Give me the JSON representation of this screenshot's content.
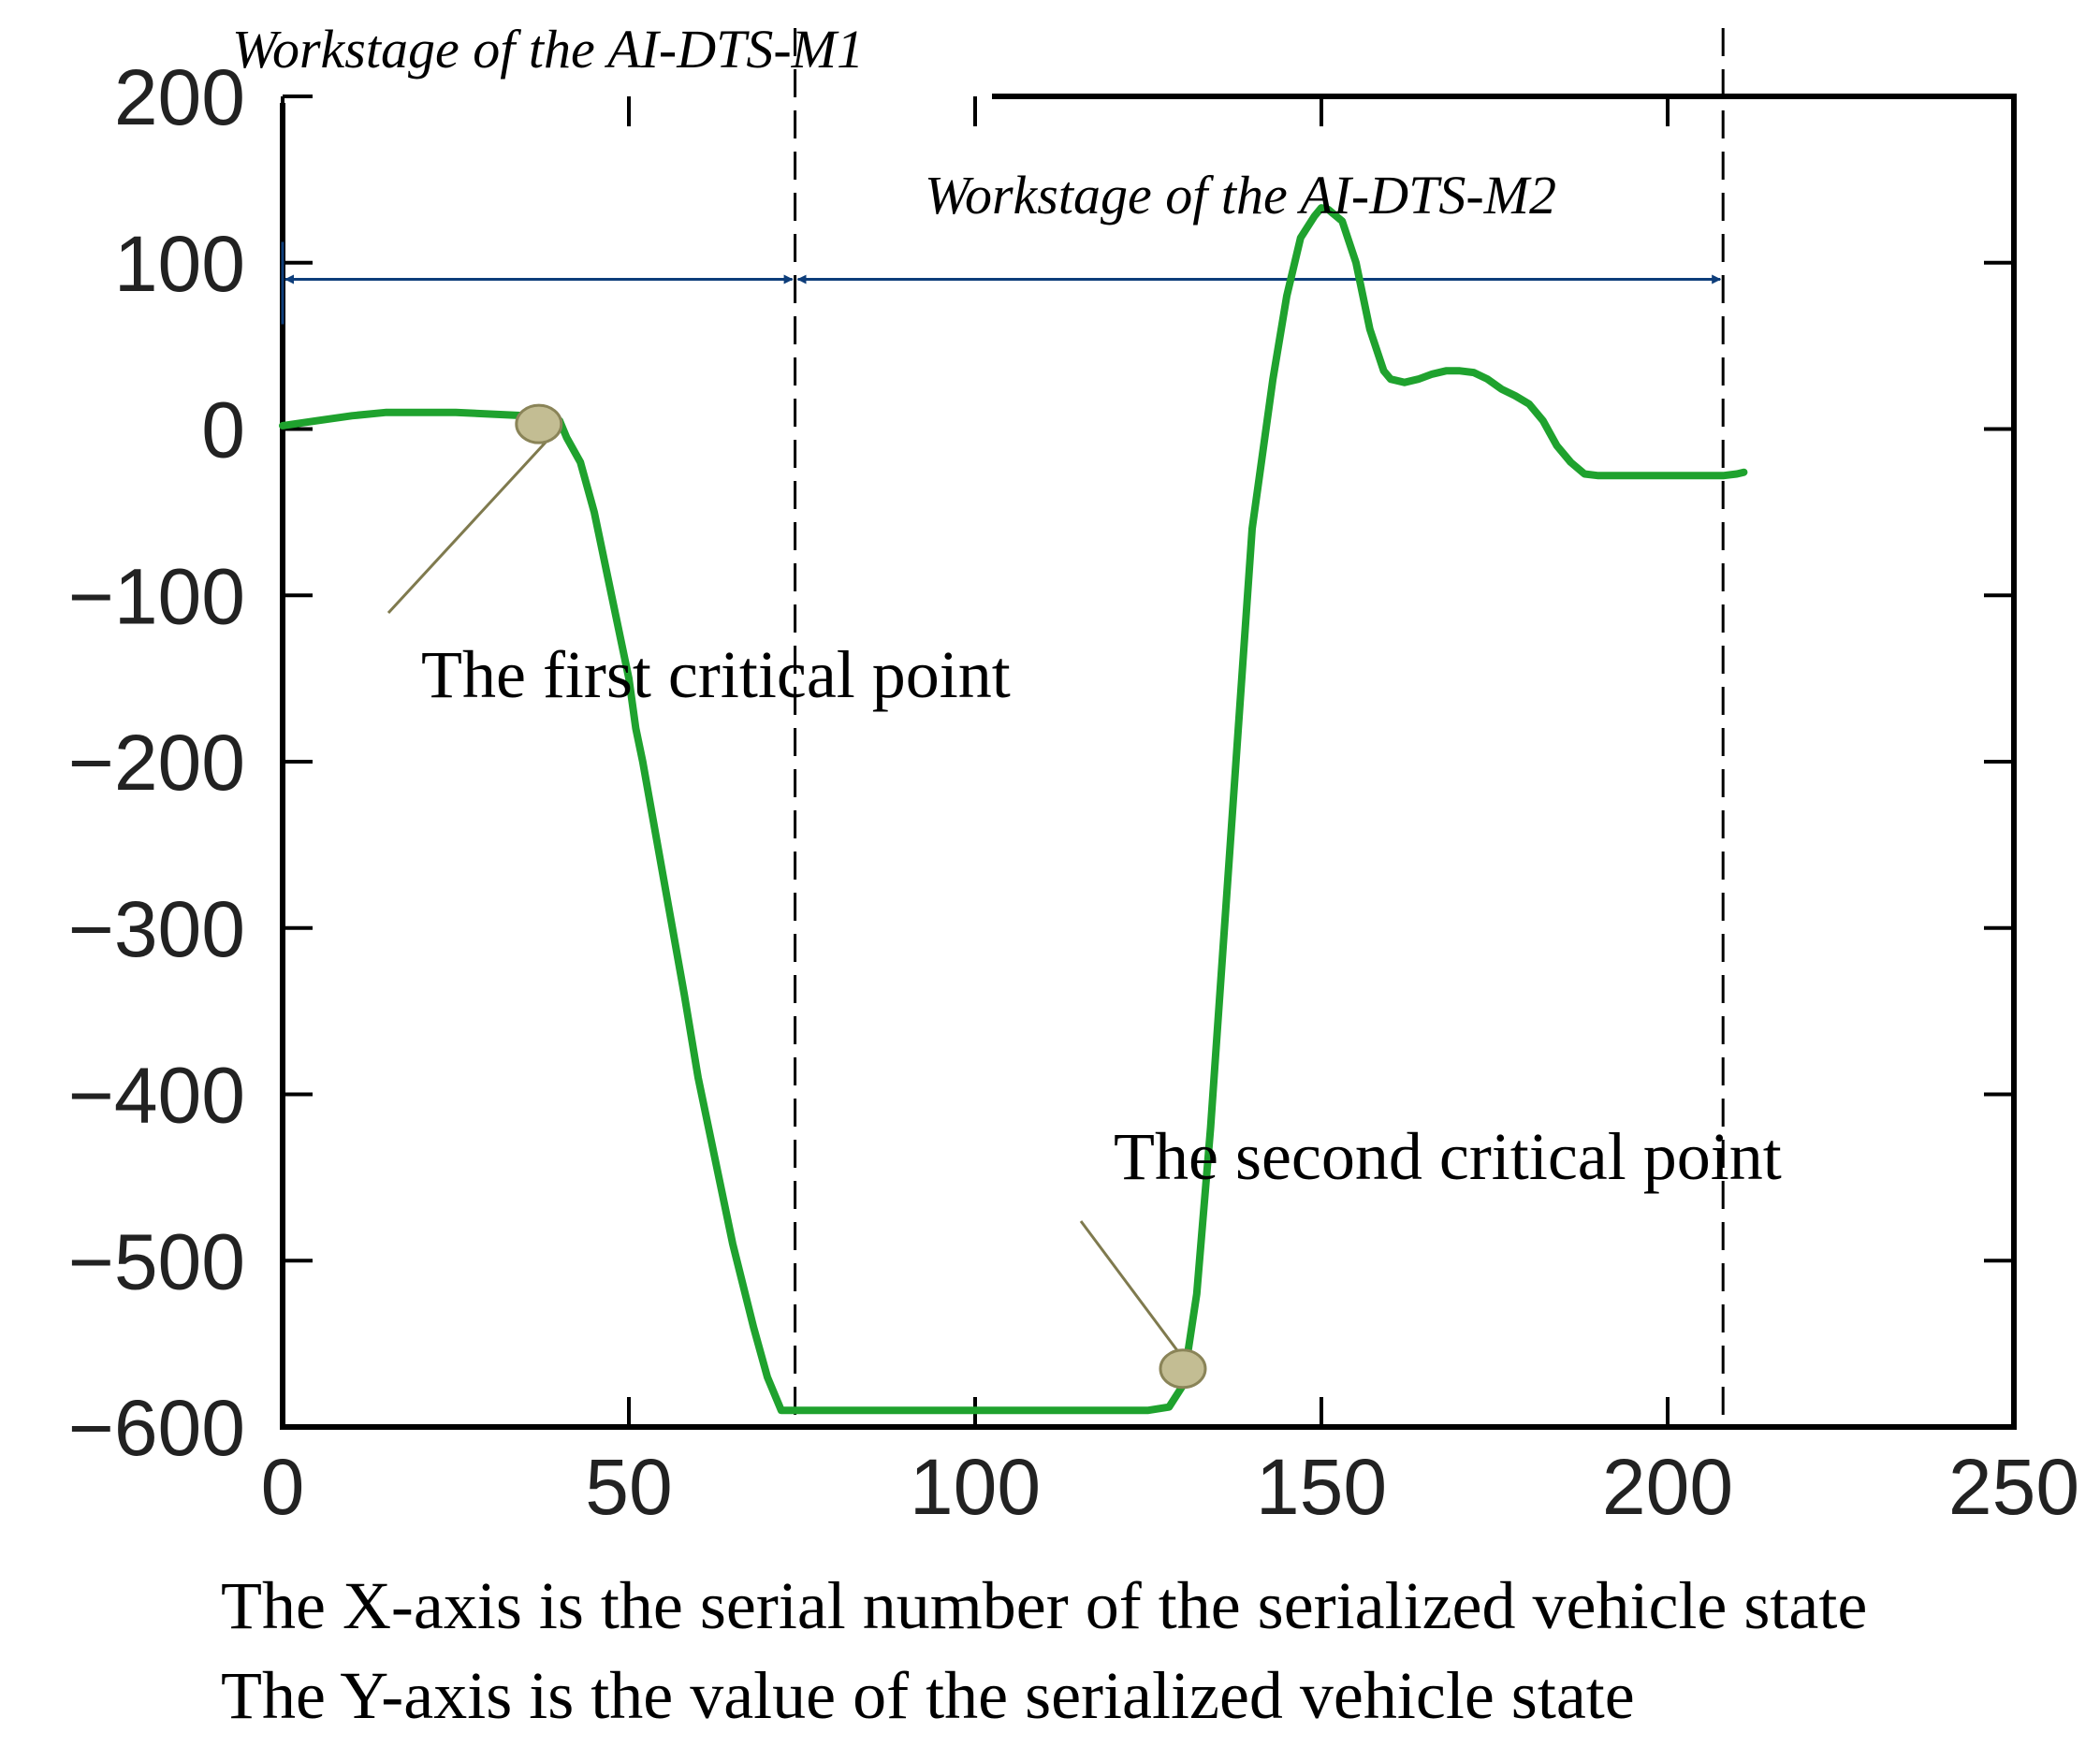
{
  "colors": {
    "series": "#1fa22e",
    "arrow": "#0d3d7a",
    "marker_fill": "#c3bd93",
    "marker_stroke": "#8a8458",
    "pointer": "#7f7a4e",
    "frame": "#000000"
  },
  "chart_data": {
    "type": "line",
    "title": "",
    "xlabel": "",
    "ylabel": "",
    "xlim": [
      0,
      250
    ],
    "ylim": [
      -600,
      200
    ],
    "x_ticks": [
      0,
      50,
      100,
      150,
      200,
      250
    ],
    "y_ticks": [
      200,
      100,
      0,
      -100,
      -200,
      -300,
      -400,
      -500,
      -600
    ],
    "x_tick_labels": [
      "0",
      "50",
      "100",
      "150",
      "200",
      "250"
    ],
    "y_tick_labels": [
      "200",
      "100",
      "0",
      "−100",
      "−200",
      "−300",
      "−400",
      "−500",
      "−600"
    ],
    "grid": false,
    "series": [
      {
        "x": [
          0,
          5,
          10,
          15,
          20,
          25,
          30,
          35,
          38,
          40,
          41,
          43,
          45,
          47,
          50,
          51,
          52,
          55,
          58,
          60,
          63,
          65,
          68,
          70,
          72,
          74,
          80,
          90,
          100,
          110,
          120,
          125,
          128,
          130,
          132,
          134,
          136,
          138,
          140,
          143,
          145,
          147,
          149,
          150,
          151,
          153,
          155,
          157,
          159,
          160,
          162,
          164,
          166,
          168,
          170,
          172,
          174,
          176,
          178,
          180,
          182,
          184,
          186,
          188,
          190,
          195,
          200,
          205,
          208,
          210,
          211
        ],
        "y": [
          2,
          5,
          8,
          10,
          10,
          10,
          9,
          8,
          7,
          5,
          -5,
          -20,
          -50,
          -90,
          -150,
          -180,
          -200,
          -270,
          -340,
          -390,
          -450,
          -490,
          -540,
          -570,
          -590,
          -590,
          -590,
          -590,
          -590,
          -590,
          -590,
          -590,
          -588,
          -575,
          -520,
          -420,
          -300,
          -180,
          -60,
          30,
          80,
          115,
          128,
          133,
          132,
          125,
          100,
          60,
          35,
          30,
          28,
          30,
          33,
          35,
          35,
          34,
          30,
          24,
          20,
          15,
          5,
          -10,
          -20,
          -27,
          -28,
          -28,
          -28,
          -28,
          -28,
          -27,
          -26
        ]
      }
    ],
    "stage_boundaries": [
      74,
      208
    ],
    "stage_labels": [
      {
        "text": "Workstage of the AI-DTS-M1"
      },
      {
        "text": "Workstage of the AI-DTS-M2"
      }
    ],
    "critical_points": [
      {
        "x": 37,
        "y": 3,
        "label": "The first critical point"
      },
      {
        "x": 130,
        "y": -565,
        "label": "The second critical point"
      }
    ],
    "notes": [
      "The X-axis is the serial number of the serialized vehicle state",
      "The Y-axis is the value of the serialized vehicle state"
    ]
  }
}
